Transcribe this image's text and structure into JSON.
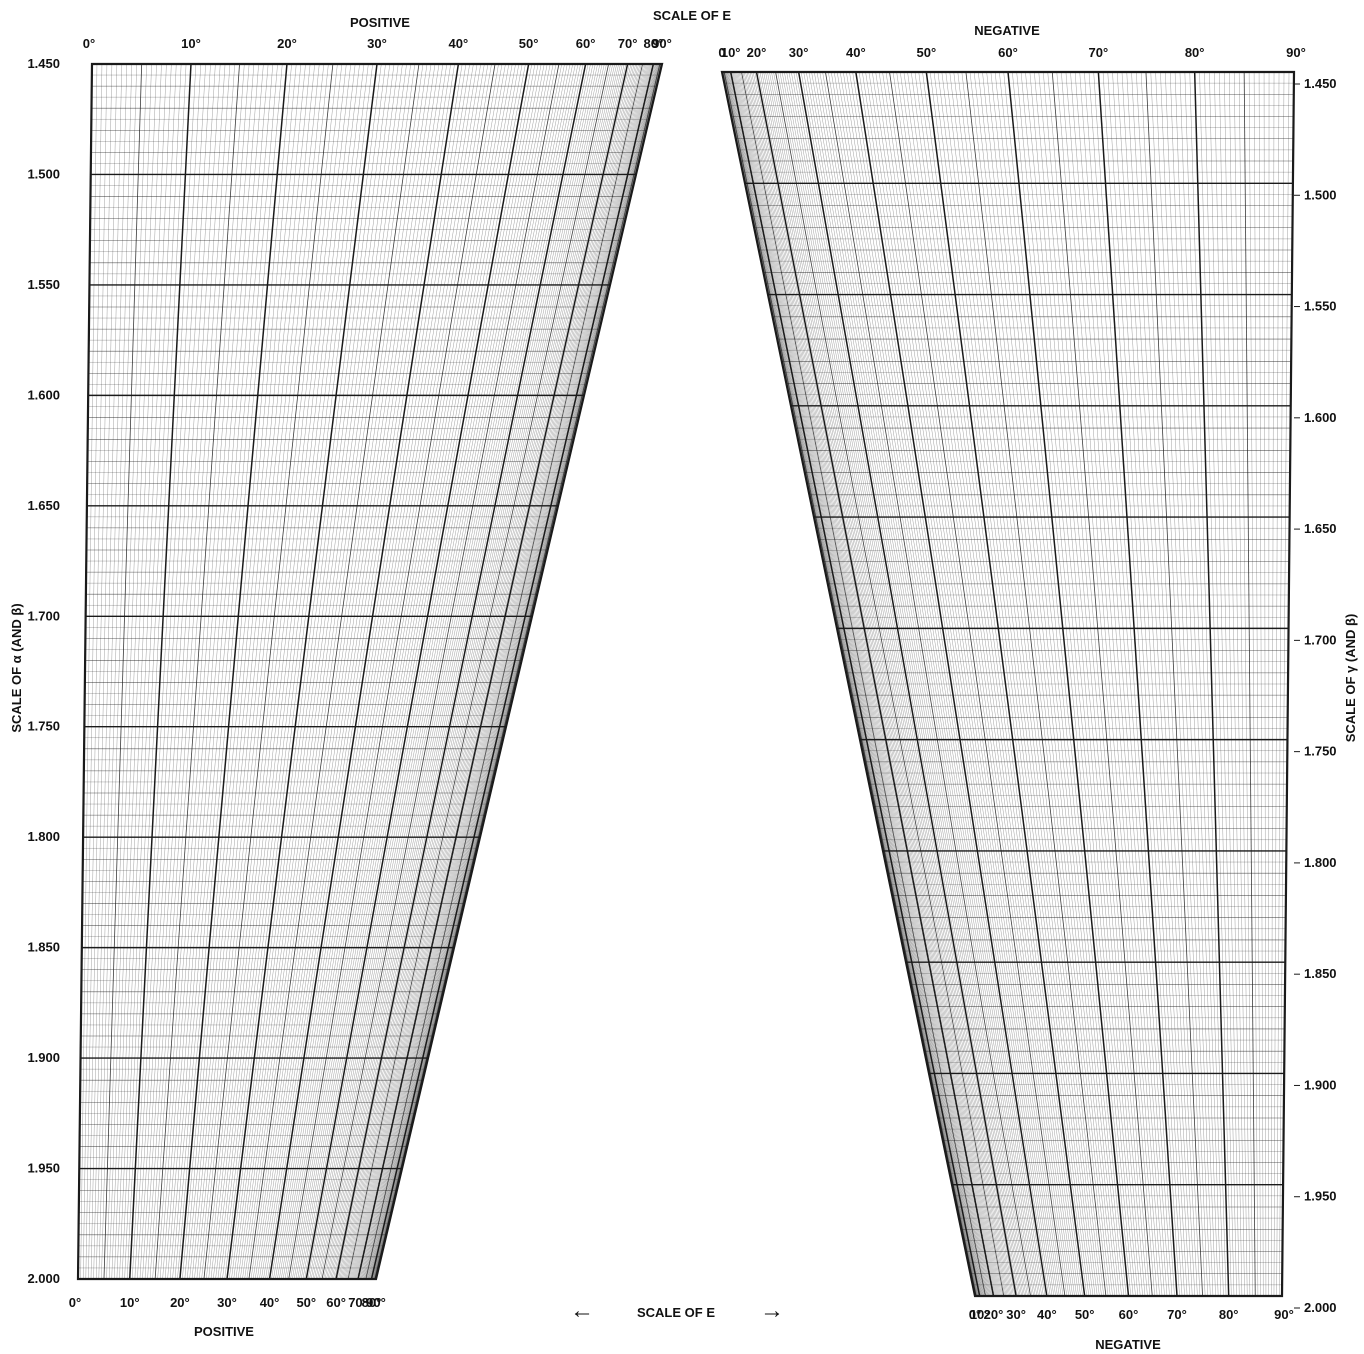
{
  "chart_data": {
    "type": "nomogram",
    "title": "SCALE OF E",
    "top_left_label": "POSITIVE",
    "top_right_label": "NEGATIVE",
    "bottom_left_label": "POSITIVE",
    "bottom_right_label": "NEGATIVE",
    "bottom_center_label": "SCALE OF E",
    "bottom_center_arrow_left": "←",
    "bottom_center_arrow_right": "→",
    "left_axis_title": "SCALE OF α (AND β)",
    "right_axis_title": "SCALE OF γ (AND β)",
    "y_ticks": [
      "1.450",
      "1.500",
      "1.550",
      "1.600",
      "1.650",
      "1.700",
      "1.750",
      "1.800",
      "1.850",
      "1.900",
      "1.950",
      "2.000"
    ],
    "y_values": [
      1.45,
      1.5,
      1.55,
      1.6,
      1.65,
      1.7,
      1.75,
      1.8,
      1.85,
      1.9,
      1.95,
      2.0
    ],
    "ylim": [
      1.45,
      2.0
    ],
    "angle_values": [
      0,
      10,
      20,
      30,
      40,
      50,
      60,
      70,
      80,
      90
    ],
    "angle_ticks_top_left": [
      "0°",
      "10°",
      "20°",
      "30°",
      "40°",
      "50°",
      "60°",
      "70°",
      "80°",
      "90°"
    ],
    "angle_ticks_bottom_left": [
      "0°",
      "10°",
      "20°",
      "30°",
      "40°",
      "50°",
      "60°",
      "70°",
      "80°",
      "90°"
    ],
    "angle_ticks_top_right": [
      "90°",
      "80°",
      "70°",
      "60°",
      "50°",
      "40°",
      "30°",
      "20°",
      "10°",
      "0"
    ],
    "angle_ticks_bottom_right": [
      "90°",
      "80°",
      "70°",
      "60°",
      "50°",
      "40°",
      "30°",
      "20°",
      "10°",
      "0°"
    ],
    "grid": true,
    "line_color": "#1a1a1a",
    "background": "#ffffff"
  }
}
